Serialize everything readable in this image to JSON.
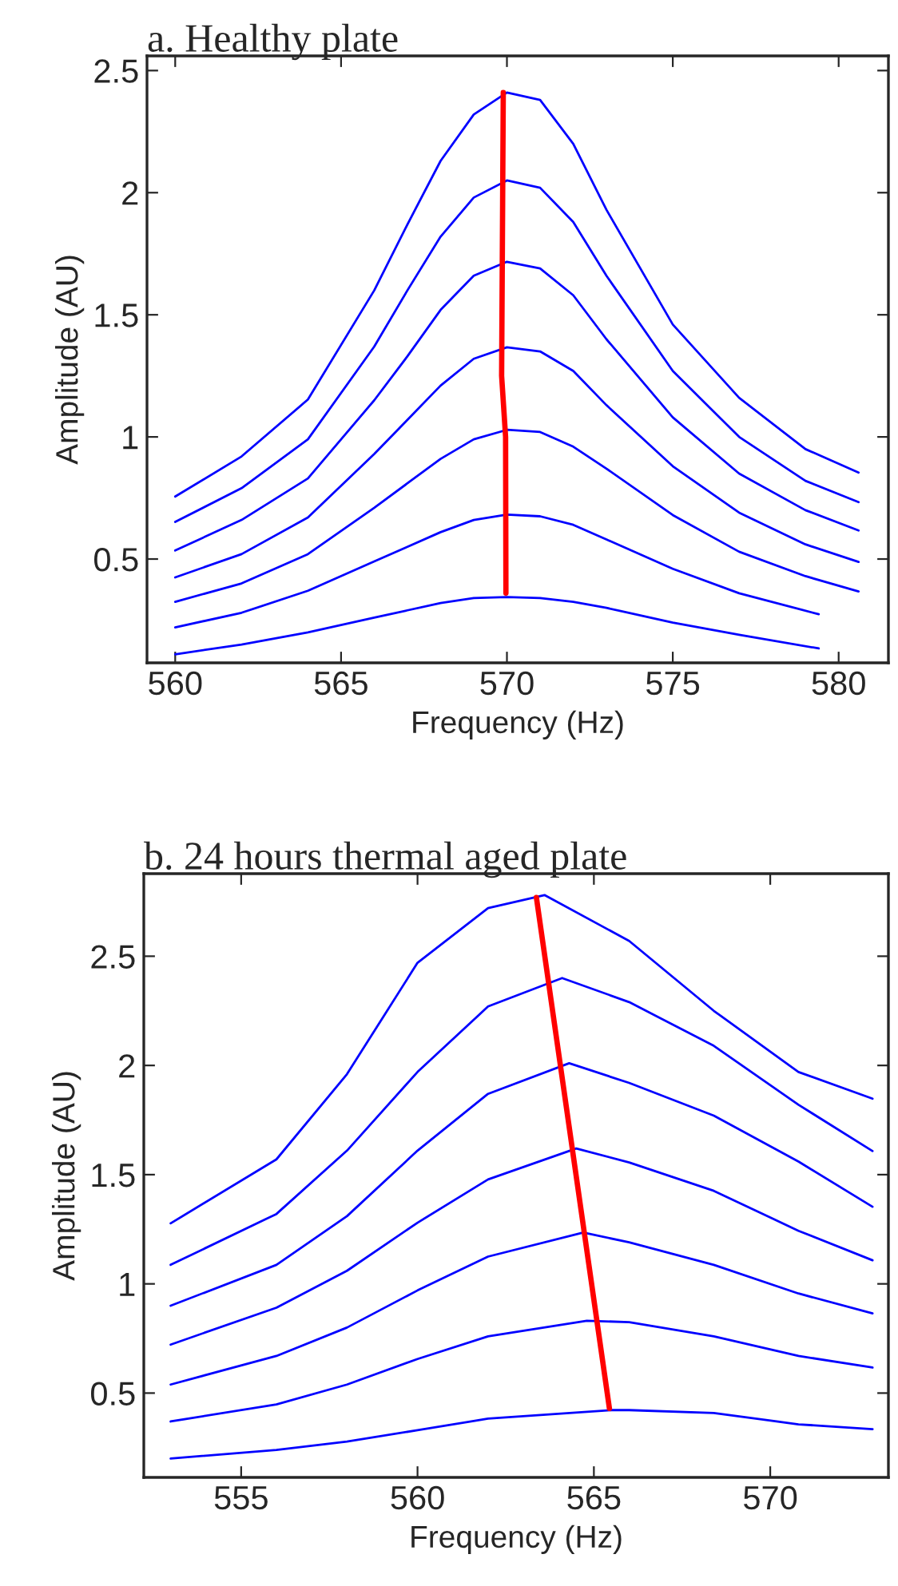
{
  "chart_data": [
    {
      "type": "line",
      "title": "a. Healthy plate",
      "xlabel": "Frequency (Hz)",
      "ylabel": "Amplitude (AU)",
      "xlim": [
        559.15,
        581.5
      ],
      "ylim": [
        0.075,
        2.56
      ],
      "xticks": [
        560,
        565,
        570,
        575,
        580
      ],
      "yticks": [
        0.5,
        1,
        1.5,
        2,
        2.5
      ],
      "grid": false,
      "legend": false,
      "series": [
        {
          "color": "#0000ff",
          "x": [
            560,
            562,
            564,
            566,
            567,
            568,
            569,
            570,
            571,
            572,
            573,
            575,
            577,
            579,
            580.6
          ],
          "values": [
            0.756,
            0.92,
            1.153,
            1.6,
            1.87,
            2.13,
            2.32,
            2.41,
            2.38,
            2.2,
            1.93,
            1.46,
            1.16,
            0.95,
            0.854
          ]
        },
        {
          "color": "#0000ff",
          "x": [
            560,
            562,
            564,
            566,
            567,
            568,
            569,
            570,
            571,
            572,
            573,
            575,
            577,
            579,
            580.6
          ],
          "values": [
            0.652,
            0.79,
            0.99,
            1.37,
            1.6,
            1.82,
            1.98,
            2.05,
            2.02,
            1.88,
            1.66,
            1.27,
            1.0,
            0.82,
            0.733
          ]
        },
        {
          "color": "#0000ff",
          "x": [
            560,
            562,
            564,
            566,
            567,
            568,
            569,
            570,
            571,
            572,
            573,
            575,
            577,
            579,
            580.6
          ],
          "values": [
            0.535,
            0.66,
            0.83,
            1.15,
            1.33,
            1.52,
            1.66,
            1.717,
            1.69,
            1.58,
            1.4,
            1.08,
            0.85,
            0.7,
            0.617
          ]
        },
        {
          "color": "#0000ff",
          "x": [
            560,
            562,
            564,
            566,
            567,
            568,
            569,
            570,
            571,
            572,
            573,
            575,
            577,
            579,
            580.6
          ],
          "values": [
            0.425,
            0.52,
            0.67,
            0.93,
            1.07,
            1.21,
            1.32,
            1.367,
            1.35,
            1.27,
            1.13,
            0.88,
            0.69,
            0.56,
            0.488
          ]
        },
        {
          "color": "#0000ff",
          "x": [
            560,
            562,
            564,
            566,
            567,
            568,
            569,
            570,
            571,
            572,
            573,
            575,
            577,
            579,
            580.6
          ],
          "values": [
            0.325,
            0.4,
            0.52,
            0.71,
            0.81,
            0.91,
            0.99,
            1.029,
            1.02,
            0.96,
            0.87,
            0.68,
            0.53,
            0.43,
            0.367
          ]
        },
        {
          "color": "#0000ff",
          "x": [
            560,
            562,
            564,
            566,
            567,
            568,
            569,
            570,
            571,
            572,
            573,
            575,
            577,
            579.4
          ],
          "values": [
            0.22,
            0.28,
            0.37,
            0.49,
            0.55,
            0.61,
            0.66,
            0.682,
            0.675,
            0.64,
            0.58,
            0.46,
            0.36,
            0.274
          ]
        },
        {
          "color": "#0000ff",
          "x": [
            560,
            562,
            564,
            566,
            567,
            568,
            569,
            570,
            571,
            572,
            573,
            575,
            577,
            579.4
          ],
          "values": [
            0.11,
            0.15,
            0.2,
            0.26,
            0.29,
            0.32,
            0.34,
            0.344,
            0.34,
            0.325,
            0.3,
            0.24,
            0.19,
            0.134
          ]
        },
        {
          "color": "#ff0000",
          "x": [
            569.89,
            569.84,
            569.96,
            569.97
          ],
          "values": [
            2.41,
            1.25,
            1.0,
            0.36
          ]
        }
      ]
    },
    {
      "type": "line",
      "title": "b. 24 hours thermal aged plate",
      "xlabel": "Frequency (Hz)",
      "ylabel": "Amplitude (AU)",
      "xlim": [
        552.24,
        573.35
      ],
      "ylim": [
        0.114,
        2.878
      ],
      "xticks": [
        555,
        560,
        565,
        570
      ],
      "yticks": [
        0.5,
        1,
        1.5,
        2,
        2.5
      ],
      "grid": false,
      "legend": false,
      "series": [
        {
          "color": "#0000ff",
          "x": [
            553,
            556,
            558,
            560,
            562,
            563.6,
            566,
            568.4,
            570.8,
            572.9
          ],
          "values": [
            1.277,
            1.57,
            1.96,
            2.47,
            2.72,
            2.78,
            2.57,
            2.25,
            1.97,
            1.848
          ]
        },
        {
          "color": "#0000ff",
          "x": [
            553,
            556,
            558,
            560,
            562,
            564.1,
            566,
            568.4,
            570.8,
            572.9
          ],
          "values": [
            1.087,
            1.32,
            1.61,
            1.97,
            2.27,
            2.4,
            2.29,
            2.09,
            1.82,
            1.608
          ]
        },
        {
          "color": "#0000ff",
          "x": [
            553,
            556,
            558,
            560,
            562,
            564.3,
            566,
            568.4,
            570.8,
            572.9
          ],
          "values": [
            0.9,
            1.087,
            1.31,
            1.61,
            1.87,
            2.01,
            1.92,
            1.77,
            1.56,
            1.353
          ]
        },
        {
          "color": "#0000ff",
          "x": [
            553,
            556,
            558,
            560,
            562,
            564.5,
            566,
            568.4,
            570.8,
            572.9
          ],
          "values": [
            0.722,
            0.891,
            1.06,
            1.28,
            1.478,
            1.62,
            1.556,
            1.426,
            1.243,
            1.108
          ]
        },
        {
          "color": "#0000ff",
          "x": [
            553,
            556,
            558,
            560,
            562,
            564.7,
            566,
            568.4,
            570.8,
            572.9
          ],
          "values": [
            0.539,
            0.67,
            0.8,
            0.97,
            1.125,
            1.235,
            1.19,
            1.087,
            0.956,
            0.865
          ]
        },
        {
          "color": "#0000ff",
          "x": [
            553,
            556,
            558,
            560,
            562,
            564.8,
            566,
            568.4,
            570.8,
            572.9
          ],
          "values": [
            0.37,
            0.448,
            0.539,
            0.656,
            0.76,
            0.831,
            0.825,
            0.76,
            0.67,
            0.617
          ]
        },
        {
          "color": "#0000ff",
          "x": [
            553,
            556,
            558,
            560,
            562,
            565.5,
            566,
            568.4,
            570.8,
            572.9
          ],
          "values": [
            0.2,
            0.24,
            0.278,
            0.33,
            0.383,
            0.422,
            0.422,
            0.409,
            0.357,
            0.335
          ]
        },
        {
          "color": "#ff0000",
          "x": [
            563.37,
            565.44
          ],
          "values": [
            2.769,
            0.43
          ]
        }
      ]
    }
  ]
}
